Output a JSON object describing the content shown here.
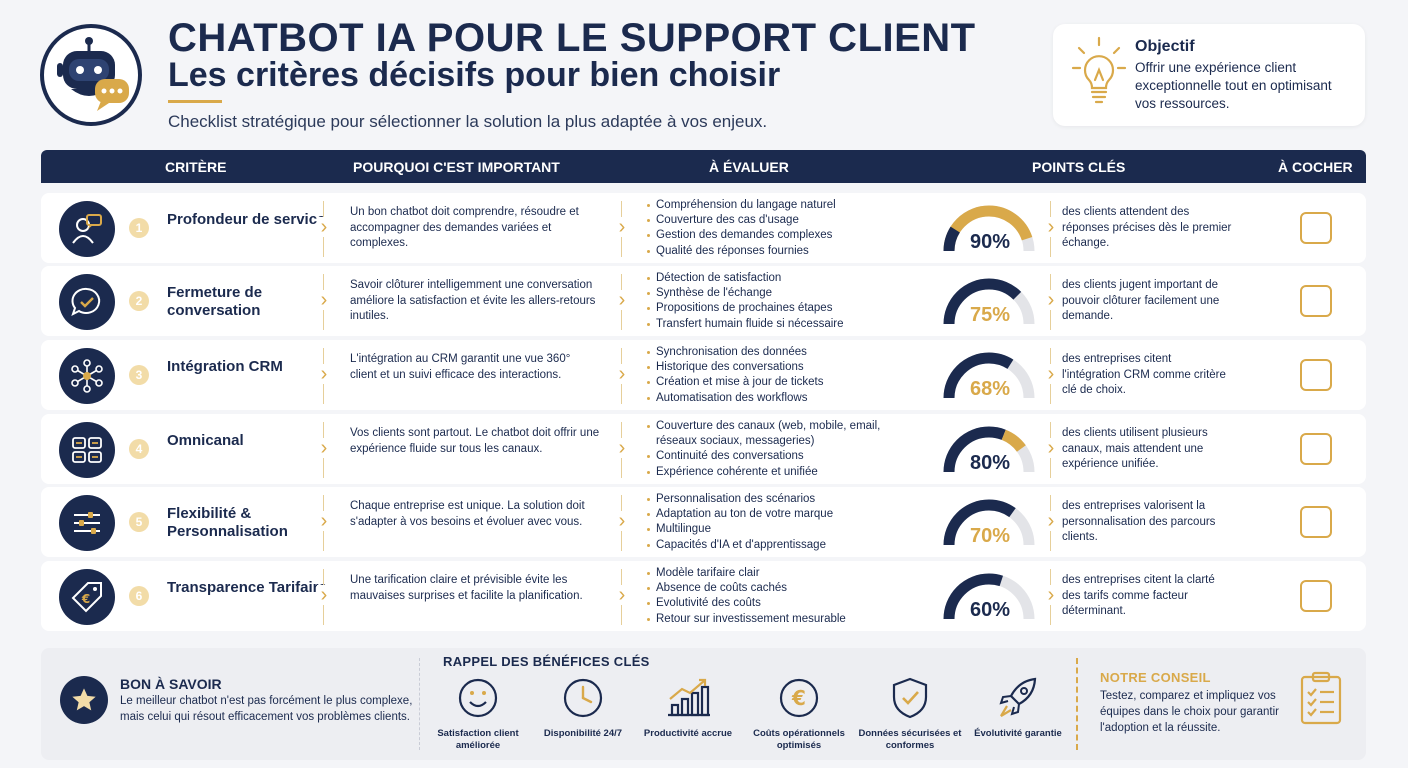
{
  "header": {
    "title_line1": "CHATBOT IA POUR LE SUPPORT CLIENT",
    "title_line2": "Les critères décisifs pour bien choisir",
    "subtitle": "Checklist stratégique pour sélectionner la solution la plus adaptée à vos enjeux."
  },
  "objective": {
    "title": "Objectif",
    "text": "Offrir une expérience client exceptionnelle tout en optimisant vos ressources.",
    "icon": "lightbulb-icon"
  },
  "table": {
    "headers": [
      "CRITÈRE",
      "POURQUOI C'EST IMPORTANT",
      "À ÉVALUER",
      "POINTS CLÉS",
      "À COCHER"
    ],
    "rows": [
      {
        "num": "1",
        "icon": "agent-icon",
        "criterion": "Profondeur de service",
        "why": "Un bon chatbot doit comprendre, résoudre et accompagner des demandes variées et complexes.",
        "evaluate": [
          "Compréhension du langage naturel",
          "Couverture des cas d'usage",
          "Gestion des demandes complexes",
          "Qualité des réponses fournies"
        ],
        "percent": 90,
        "percent_label": "90%",
        "key_point": "des clients attendent des réponses précises dès le premier échange."
      },
      {
        "num": "2",
        "icon": "check-chat-icon",
        "criterion": "Fermeture de conversation",
        "why": "Savoir clôturer intelligemment une conversation améliore la satisfaction et évite les allers-retours inutiles.",
        "evaluate": [
          "Détection de satisfaction",
          "Synthèse de l'échange",
          "Propositions de prochaines étapes",
          "Transfert humain fluide si nécessaire"
        ],
        "percent": 75,
        "percent_label": "75%",
        "key_point": "des clients jugent important de pouvoir clôturer facilement une demande."
      },
      {
        "num": "3",
        "icon": "network-icon",
        "criterion": "Intégration CRM",
        "why": "L'intégration au CRM garantit une vue 360° client et un suivi efficace des interactions.",
        "evaluate": [
          "Synchronisation des données",
          "Historique des conversations",
          "Création et mise à jour de tickets",
          "Automatisation des workflows"
        ],
        "percent": 68,
        "percent_label": "68%",
        "key_point": "des entreprises citent l'intégration CRM comme critère clé de choix."
      },
      {
        "num": "4",
        "icon": "channels-icon",
        "criterion": "Omnicanal",
        "why": "Vos clients sont partout. Le chatbot doit offrir une expérience fluide sur tous les canaux.",
        "evaluate": [
          "Couverture des canaux (web, mobile, email, réseaux sociaux, messageries)",
          "Continuité des conversations",
          "Expérience cohérente et unifiée"
        ],
        "percent": 80,
        "percent_label": "80%",
        "key_point": "des clients utilisent plusieurs canaux, mais attendent une expérience unifiée."
      },
      {
        "num": "5",
        "icon": "sliders-icon",
        "criterion": "Flexibilité & Personnalisation",
        "why": "Chaque entreprise est unique. La solution doit s'adapter à vos besoins et évoluer avec vous.",
        "evaluate": [
          "Personnalisation des scénarios",
          "Adaptation au ton de votre marque",
          "Multilingue",
          "Capacités d'IA et d'apprentissage"
        ],
        "percent": 70,
        "percent_label": "70%",
        "key_point": "des entreprises valorisent la personnalisation des parcours clients."
      },
      {
        "num": "6",
        "icon": "euro-tag-icon",
        "criterion": "Transparence Tarifaire",
        "why": "Une tarification claire et prévisible évite les mauvaises surprises et facilite la planification.",
        "evaluate": [
          "Modèle tarifaire clair",
          "Absence de coûts cachés",
          "Evolutivité des coûts",
          "Retour sur investissement mesurable"
        ],
        "percent": 60,
        "percent_label": "60%",
        "key_point": "des entreprises citent la clarté des tarifs comme facteur déterminant."
      }
    ]
  },
  "good_to_know": {
    "title": "BON À SAVOIR",
    "text": "Le meilleur chatbot n'est pas forcément le plus complexe, mais celui qui résout efficacement vos problèmes clients.",
    "icon": "star-icon"
  },
  "benefits": {
    "title": "RAPPEL DES BÉNÉFICES CLÉS",
    "items": [
      {
        "label": "Satisfaction client améliorée",
        "icon": "smiley-icon"
      },
      {
        "label": "Disponibilité 24/7",
        "icon": "clock-icon"
      },
      {
        "label": "Productivité accrue",
        "icon": "growth-chart-icon"
      },
      {
        "label": "Coûts opérationnels optimisés",
        "icon": "euro-coin-icon"
      },
      {
        "label": "Données sécurisées et conformes",
        "icon": "shield-check-icon"
      },
      {
        "label": "Évolutivité garantie",
        "icon": "rocket-icon"
      }
    ]
  },
  "advice": {
    "title": "NOTRE CONSEIL",
    "text": "Testez, comparez et impliquez vos équipes dans le choix pour garantir l'adoption et la réussite.",
    "icon": "clipboard-checklist-icon"
  },
  "colors": {
    "navy": "#1b2a4e",
    "gold": "#d9a94a",
    "track": "#e3e4e8"
  }
}
